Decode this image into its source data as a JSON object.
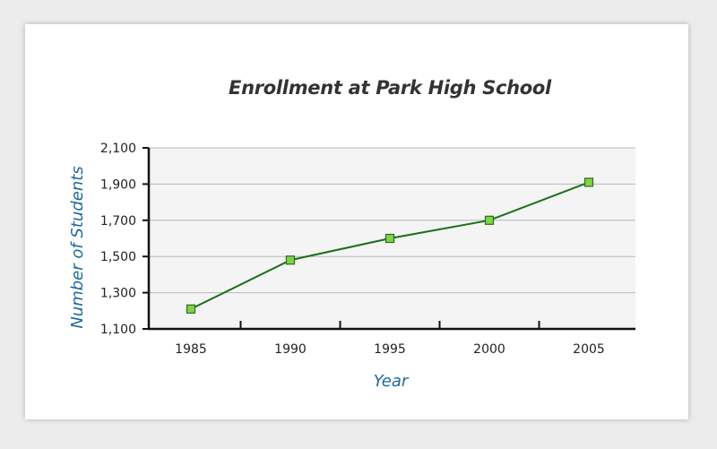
{
  "chart_data": {
    "type": "line",
    "title": "Enrollment at Park High School",
    "xlabel": "Year",
    "ylabel": "Number of Students",
    "x": [
      1985,
      1990,
      1995,
      2000,
      2005
    ],
    "x_tick_labels": [
      "1985",
      "1990",
      "1995",
      "2000",
      "2005"
    ],
    "y_tick_values": [
      1100,
      1300,
      1500,
      1700,
      1900,
      2100
    ],
    "y_tick_labels": [
      "1,100",
      "1,300",
      "1,500",
      "1,700",
      "1,900",
      "2,100"
    ],
    "ylim": [
      1100,
      2100
    ],
    "grid": true,
    "series": [
      {
        "values": [
          1210,
          1480,
          1600,
          1700,
          1910
        ]
      }
    ],
    "colors": {
      "line": "#1a6e1a",
      "marker_fill": "#7fd34a",
      "marker_stroke": "#2f6b1c",
      "plot_background": "#f4f4f4",
      "grid": "#b8b8b8",
      "axis": "#111111",
      "axis_title": "#1f6a99"
    }
  }
}
